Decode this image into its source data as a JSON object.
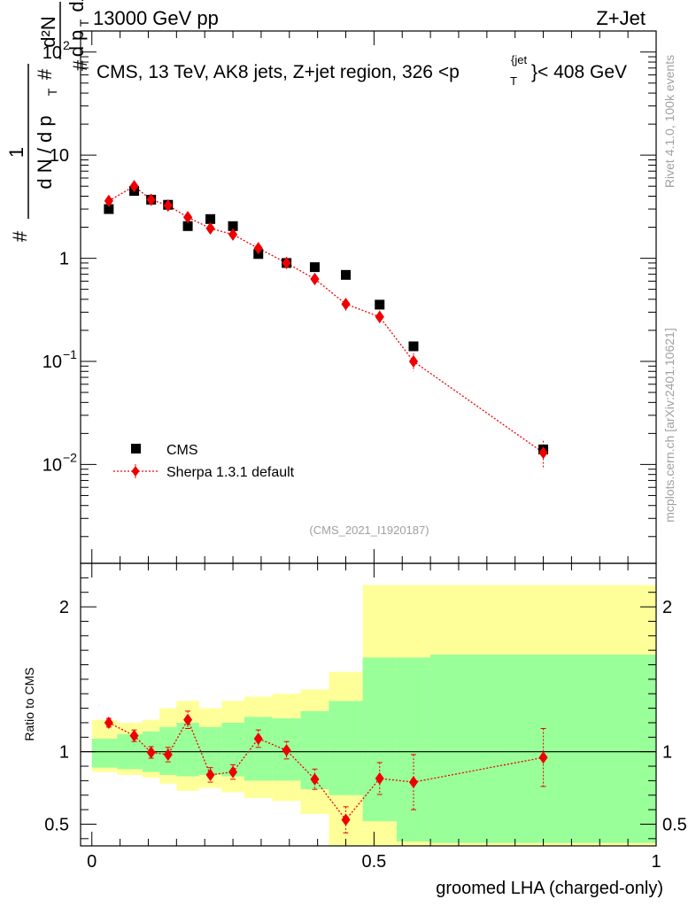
{
  "header": {
    "left": "13000 GeV pp",
    "right": "Z+Jet"
  },
  "side": {
    "rivet": "Rivet 4.1.0,  100k events",
    "mcplots": "mcplots.cern.ch [arXiv:2401.10621]"
  },
  "watermark": "(CMS_2021_I1920187)",
  "colors": {
    "data": "#000000",
    "mc": "#ee0000",
    "band_inner": "#99ff99",
    "band_outer": "#ffff99"
  },
  "chart_data": [
    {
      "type": "scatter",
      "panel": "main",
      "title": "CMS, 13 TeV, AK8 jets, Z+jet region, 326 <p_T^{jet}< 408 GeV",
      "title_parts": {
        "before": "CMS, 13 TeV, AK8 jets, Z+jet region, 326 <p",
        "sub": "T",
        "sup": "{jet",
        "after": "}< 408 GeV"
      },
      "ylabel": "1/(dN/dp_T) d²N/(dp_T dλ)",
      "ylabel_parts": {
        "hash": "#",
        "one": "1",
        "dN": "d N / d p",
        "T": "T",
        "d2N": "d²N",
        "dp": "d p",
        "dlam": "dλ"
      },
      "yscale": "log",
      "ylim": [
        0.0011,
        160
      ],
      "xlim": [
        -0.02,
        1.0
      ],
      "ytick_labels": [
        {
          "value": 0.01,
          "base": "10",
          "exp": "−2"
        },
        {
          "value": 0.1,
          "base": "10",
          "exp": "−1"
        },
        {
          "value": 1,
          "base": "1",
          "exp": ""
        },
        {
          "value": 10,
          "base": "10",
          "exp": ""
        },
        {
          "value": 100,
          "base": "10",
          "exp": "2"
        }
      ],
      "legend": {
        "position": "bottom-left",
        "entries": [
          "CMS",
          "Sherpa 1.3.1 default"
        ]
      },
      "series": [
        {
          "name": "CMS",
          "marker": "square",
          "x": [
            0.03,
            0.075,
            0.105,
            0.135,
            0.17,
            0.21,
            0.25,
            0.295,
            0.345,
            0.395,
            0.45,
            0.51,
            0.57,
            0.8
          ],
          "y": [
            3.0,
            4.5,
            3.7,
            3.3,
            2.05,
            2.4,
            2.05,
            1.1,
            0.9,
            0.82,
            0.69,
            0.355,
            0.14,
            0.014
          ]
        },
        {
          "name": "Sherpa 1.3.1 default",
          "marker": "diamond",
          "x": [
            0.03,
            0.075,
            0.105,
            0.135,
            0.17,
            0.21,
            0.25,
            0.295,
            0.345,
            0.395,
            0.45,
            0.51,
            0.57,
            0.8
          ],
          "y": [
            3.6,
            5.0,
            3.7,
            3.25,
            2.5,
            1.95,
            1.7,
            1.25,
            0.9,
            0.63,
            0.36,
            0.27,
            0.1,
            0.013
          ],
          "yerr": [
            0.2,
            0.3,
            0.2,
            0.2,
            0.15,
            0.15,
            0.12,
            0.1,
            0.07,
            0.06,
            0.05,
            0.04,
            0.02,
            0.004
          ]
        }
      ]
    },
    {
      "type": "scatter",
      "panel": "ratio",
      "xlabel": "groomed LHA (charged-only)",
      "ylabel": "Ratio to CMS",
      "ylim": [
        0.35,
        2.3
      ],
      "xlim": [
        -0.02,
        1.0
      ],
      "yticks_major": [
        {
          "value": 0.5,
          "label": "0.5"
        },
        {
          "value": 1,
          "label": "1"
        },
        {
          "value": 2,
          "label": "2"
        }
      ],
      "xticks_major": [
        {
          "value": 0,
          "label": "0"
        },
        {
          "value": 0.5,
          "label": "0.5"
        },
        {
          "value": 1,
          "label": "1"
        }
      ],
      "bins": [
        {
          "lo": 0.0,
          "hi": 0.045,
          "in_lo": 0.89,
          "in_hi": 1.09,
          "out_lo": 0.86,
          "out_hi": 1.22
        },
        {
          "lo": 0.045,
          "hi": 0.09,
          "in_lo": 0.88,
          "in_hi": 1.12,
          "out_lo": 0.84,
          "out_hi": 1.2
        },
        {
          "lo": 0.09,
          "hi": 0.12,
          "in_lo": 0.86,
          "in_hi": 1.14,
          "out_lo": 0.82,
          "out_hi": 1.22
        },
        {
          "lo": 0.12,
          "hi": 0.15,
          "in_lo": 0.84,
          "in_hi": 1.17,
          "out_lo": 0.78,
          "out_hi": 1.3
        },
        {
          "lo": 0.15,
          "hi": 0.19,
          "in_lo": 0.83,
          "in_hi": 1.2,
          "out_lo": 0.73,
          "out_hi": 1.35
        },
        {
          "lo": 0.19,
          "hi": 0.23,
          "in_lo": 0.84,
          "in_hi": 1.17,
          "out_lo": 0.75,
          "out_hi": 1.3
        },
        {
          "lo": 0.23,
          "hi": 0.27,
          "in_lo": 0.83,
          "in_hi": 1.2,
          "out_lo": 0.72,
          "out_hi": 1.35
        },
        {
          "lo": 0.27,
          "hi": 0.32,
          "in_lo": 0.8,
          "in_hi": 1.24,
          "out_lo": 0.68,
          "out_hi": 1.38
        },
        {
          "lo": 0.32,
          "hi": 0.37,
          "in_lo": 0.8,
          "in_hi": 1.23,
          "out_lo": 0.66,
          "out_hi": 1.4
        },
        {
          "lo": 0.37,
          "hi": 0.42,
          "in_lo": 0.74,
          "in_hi": 1.28,
          "out_lo": 0.57,
          "out_hi": 1.43
        },
        {
          "lo": 0.42,
          "hi": 0.48,
          "in_lo": 0.7,
          "in_hi": 1.35,
          "out_lo": 0.35,
          "out_hi": 1.55
        },
        {
          "lo": 0.48,
          "hi": 0.54,
          "in_lo": 0.52,
          "in_hi": 1.65,
          "out_lo": 0.35,
          "out_hi": 2.15
        },
        {
          "lo": 0.54,
          "hi": 0.6,
          "in_lo": 0.38,
          "in_hi": 1.65,
          "out_lo": 0.35,
          "out_hi": 2.15
        },
        {
          "lo": 0.6,
          "hi": 1.0,
          "in_lo": 0.37,
          "in_hi": 1.67,
          "out_lo": 0.35,
          "out_hi": 2.15
        }
      ],
      "series": [
        {
          "name": "Sherpa 1.3.1 default / CMS",
          "x": [
            0.03,
            0.075,
            0.105,
            0.135,
            0.17,
            0.21,
            0.25,
            0.295,
            0.345,
            0.395,
            0.45,
            0.51,
            0.57,
            0.8
          ],
          "y": [
            1.2,
            1.11,
            0.995,
            0.98,
            1.22,
            0.84,
            0.86,
            1.09,
            1.01,
            0.81,
            0.53,
            0.815,
            0.79,
            0.96
          ],
          "yerr": [
            0.03,
            0.04,
            0.04,
            0.05,
            0.06,
            0.05,
            0.05,
            0.06,
            0.06,
            0.07,
            0.09,
            0.11,
            0.19,
            0.2
          ]
        }
      ]
    }
  ]
}
